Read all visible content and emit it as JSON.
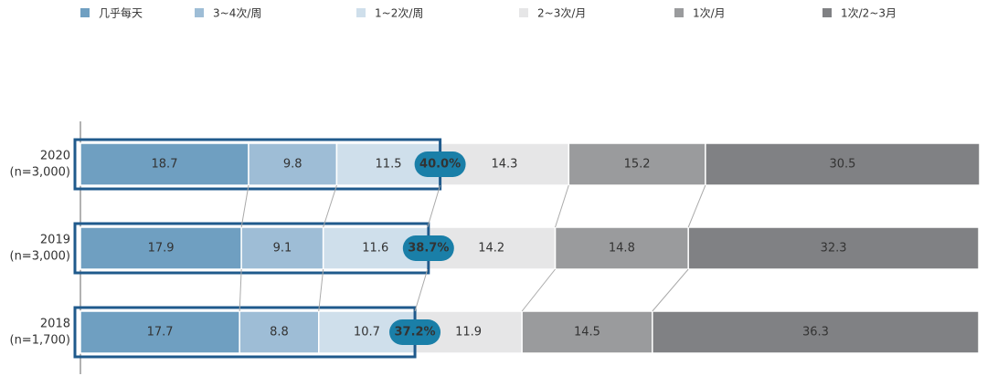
{
  "chart_data": {
    "type": "stacked-bar-horizontal",
    "categories": [
      "2020",
      "2019",
      "2018"
    ],
    "sample_sizes": [
      "(n=3,000)",
      "(n=3,000)",
      "(n=1,700)"
    ],
    "xlim": [
      0,
      100
    ],
    "series": [
      {
        "name": "几乎每天",
        "color": "#6f9fc1",
        "values": [
          18.7,
          17.9,
          17.7
        ]
      },
      {
        "name": "3~4次/周",
        "color": "#9ebdd6",
        "values": [
          9.8,
          9.1,
          8.8
        ]
      },
      {
        "name": "1~2次/周",
        "color": "#cfdfeb",
        "values": [
          11.5,
          11.6,
          10.7
        ]
      },
      {
        "name": "2~3次/月",
        "color": "#e6e6e7",
        "values": [
          14.3,
          14.2,
          11.9
        ]
      },
      {
        "name": "1次/月",
        "color": "#9a9b9d",
        "values": [
          15.2,
          14.8,
          14.5
        ]
      },
      {
        "name": "1次/2~3月",
        "color": "#808184",
        "values": [
          30.5,
          32.3,
          36.3
        ]
      }
    ],
    "highlight": {
      "values": [
        40.0,
        38.7,
        37.2
      ],
      "value_labels": [
        "40.0%",
        "38.7%",
        "37.2%"
      ]
    }
  }
}
